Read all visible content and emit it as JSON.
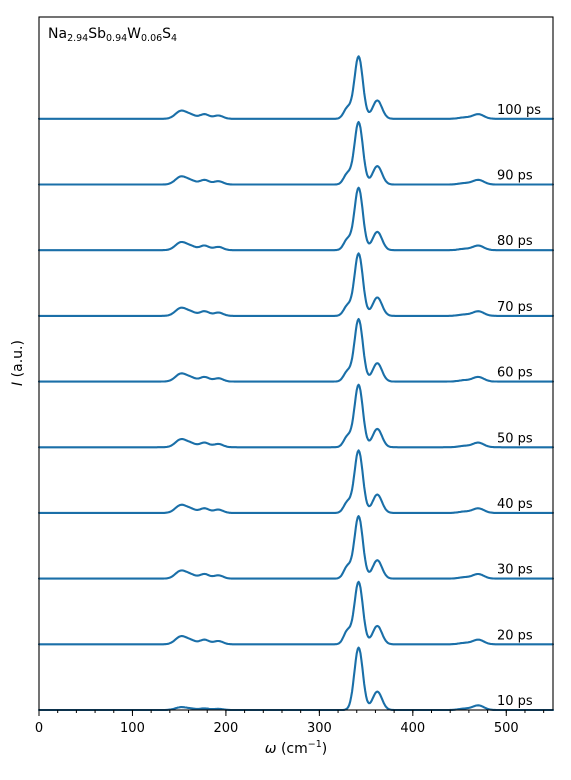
{
  "chart_data": {
    "type": "line",
    "title": {
      "parts": [
        {
          "t": "Na",
          "sub": false
        },
        {
          "t": "2.94",
          "sub": true
        },
        {
          "t": "Sb",
          "sub": false
        },
        {
          "t": "0.94",
          "sub": true
        },
        {
          "t": "W",
          "sub": false
        },
        {
          "t": "0.06",
          "sub": true
        },
        {
          "t": "S",
          "sub": false
        },
        {
          "t": "4",
          "sub": true
        }
      ]
    },
    "xlabel": {
      "symbol": "ω",
      "unit": "(cm",
      "exp": "−1",
      "close": ")"
    },
    "ylabel": {
      "symbol": "I",
      "unit": " (a.u.)"
    },
    "xlim": [
      0,
      550
    ],
    "x_ticks": [
      0,
      100,
      200,
      300,
      400,
      500
    ],
    "x_minor_step": 20,
    "ylim": [
      0,
      10.55
    ],
    "y_ticks_shown": false,
    "color": "#1a6fa8",
    "peaks_template": [
      {
        "center": 152,
        "width": 6,
        "height": 0.12
      },
      {
        "center": 163,
        "width": 5,
        "height": 0.05
      },
      {
        "center": 177,
        "width": 5,
        "height": 0.07
      },
      {
        "center": 192,
        "width": 5,
        "height": 0.05
      },
      {
        "center": 330,
        "width": 4,
        "height": 0.2
      },
      {
        "center": 342,
        "width": 4.5,
        "height": 0.95
      },
      {
        "center": 362,
        "width": 5,
        "height": 0.28
      },
      {
        "center": 455,
        "width": 6,
        "height": 0.02
      },
      {
        "center": 470,
        "width": 6,
        "height": 0.07
      }
    ],
    "series": [
      {
        "name": "10 ps",
        "offset": 0,
        "scale_330": 0.0,
        "scale_low": 0.35
      },
      {
        "name": "20 ps",
        "offset": 1,
        "scale_330": 1.0,
        "scale_low": 1.0
      },
      {
        "name": "30 ps",
        "offset": 2,
        "scale_330": 0.9,
        "scale_low": 1.0
      },
      {
        "name": "40 ps",
        "offset": 3,
        "scale_330": 0.8,
        "scale_low": 1.0
      },
      {
        "name": "50 ps",
        "offset": 4,
        "scale_330": 0.8,
        "scale_low": 1.0
      },
      {
        "name": "60 ps",
        "offset": 5,
        "scale_330": 0.75,
        "scale_low": 1.0
      },
      {
        "name": "70 ps",
        "offset": 6,
        "scale_330": 0.75,
        "scale_low": 1.0
      },
      {
        "name": "80 ps",
        "offset": 7,
        "scale_330": 0.8,
        "scale_low": 1.0
      },
      {
        "name": "90 ps",
        "offset": 8,
        "scale_330": 0.8,
        "scale_low": 1.0
      },
      {
        "name": "100 ps",
        "offset": 9,
        "scale_330": 0.8,
        "scale_low": 1.0
      }
    ]
  }
}
